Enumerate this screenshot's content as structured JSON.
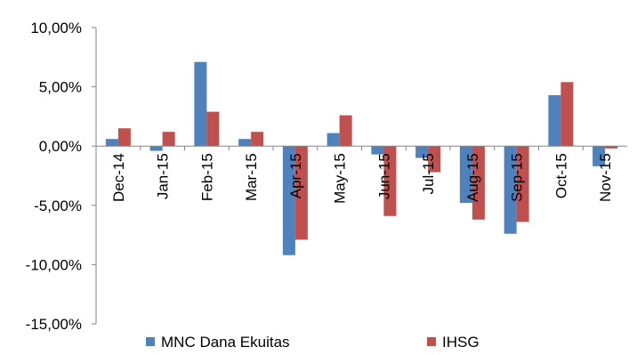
{
  "chart_data": {
    "type": "bar",
    "title": "",
    "xlabel": "",
    "ylabel": "",
    "categories": [
      "Dec-14",
      "Jan-15",
      "Feb-15",
      "Mar-15",
      "Apr-15",
      "May-15",
      "Jun-15",
      "Jul-15",
      "Aug-15",
      "Sep-15",
      "Oct-15",
      "Nov-15"
    ],
    "series": [
      {
        "name": "MNC Dana Ekuitas",
        "color": "#4f81bd",
        "values": [
          0.6,
          -0.4,
          7.1,
          0.6,
          -9.2,
          1.1,
          -0.7,
          -1.0,
          -4.8,
          -7.4,
          4.3,
          -1.7
        ]
      },
      {
        "name": "IHSG",
        "color": "#c0504d",
        "values": [
          1.5,
          1.2,
          2.9,
          1.2,
          -7.9,
          2.6,
          -5.9,
          -2.2,
          -6.2,
          -6.4,
          5.4,
          -0.2
        ]
      }
    ],
    "ylim": [
      -15,
      10
    ],
    "yticks": [
      10,
      5,
      0,
      -5,
      -10,
      -15
    ],
    "ytick_labels": [
      "10,00%",
      "5,00%",
      "0,00%",
      "-5,00%",
      "-10,00%",
      "-15,00%"
    ],
    "grid": false,
    "legend_position": "bottom"
  }
}
